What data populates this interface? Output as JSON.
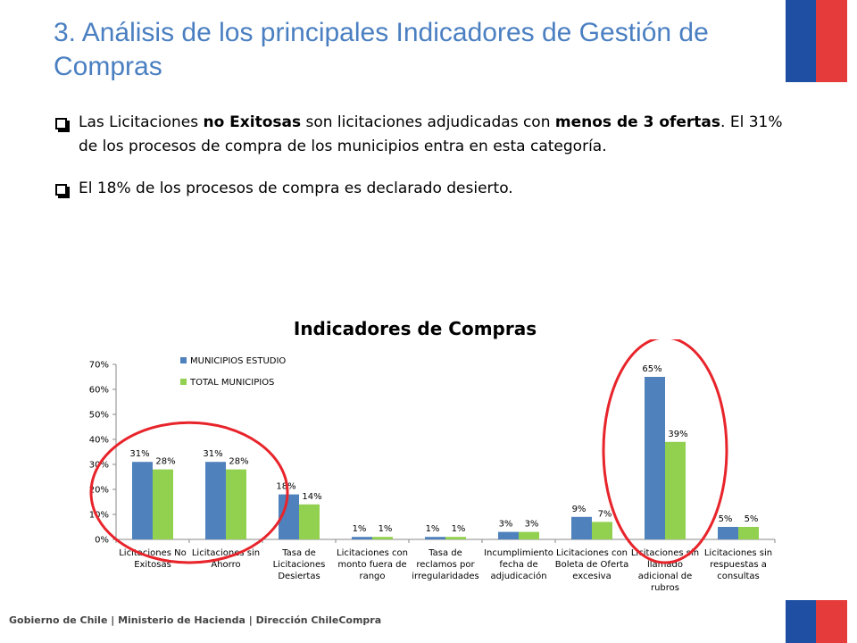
{
  "header": {
    "title": "3. Análisis de los principales Indicadores de Gestión de Compras"
  },
  "bullets": [
    {
      "parts": [
        {
          "text": "Las Licitaciones ",
          "bold": false
        },
        {
          "text": "no Exitosas",
          "bold": true
        },
        {
          "text": " son licitaciones adjudicadas con ",
          "bold": false
        },
        {
          "text": "menos de 3 ofertas",
          "bold": true
        },
        {
          "text": ". El 31% de los procesos de compra de los municipios entra en esta categoría.",
          "bold": false
        }
      ]
    },
    {
      "parts": [
        {
          "text": "El 18% de los procesos de compra es declarado desierto.",
          "bold": false
        }
      ]
    }
  ],
  "footer": {
    "text": "Gobierno de Chile | Ministerio de Hacienda | Dirección ChileCompra"
  },
  "colors": {
    "title": "#4a7fc1",
    "series1": "#4f81bd",
    "series2": "#92d050",
    "highlight": "#e8242b",
    "flag_blue": "#1e4fa3",
    "flag_red": "#e63b3b"
  },
  "chart_data": {
    "type": "bar",
    "title": "Indicadores de Compras",
    "categories": [
      [
        "Licitaciones No",
        "Exitosas"
      ],
      [
        "Licitaciones sin",
        "Ahorro"
      ],
      [
        "Tasa de",
        "Licitaciones",
        "Desiertas"
      ],
      [
        "Licitaciones con",
        "monto fuera de",
        "rango"
      ],
      [
        "Tasa de",
        "reclamos por",
        "irregularidades"
      ],
      [
        "Incumplimiento",
        "fecha de",
        "adjudicación"
      ],
      [
        "Licitaciones con",
        "Boleta de Oferta",
        "excesiva"
      ],
      [
        "Licitaciones sin",
        "llamado",
        "adicional de",
        "rubros"
      ],
      [
        "Licitaciones sin",
        "respuestas a",
        "consultas"
      ]
    ],
    "series": [
      {
        "name": "MUNICIPIOS ESTUDIO",
        "values": [
          31,
          31,
          18,
          1,
          1,
          3,
          9,
          65,
          5
        ],
        "labels": [
          "31%",
          "31%",
          "18%",
          "1%",
          "1%",
          "3%",
          "9%",
          "65%",
          "5%"
        ]
      },
      {
        "name": "TOTAL MUNICIPIOS",
        "values": [
          28,
          28,
          14,
          1,
          1,
          3,
          7,
          39,
          5
        ],
        "labels": [
          "28%",
          "28%",
          "14%",
          "1%",
          "1%",
          "3%",
          "7%",
          "39%",
          "5%"
        ]
      }
    ],
    "yticks": [
      "0%",
      "10%",
      "20%",
      "30%",
      "40%",
      "50%",
      "60%",
      "70%"
    ],
    "ylim": [
      0,
      70
    ],
    "legend_position": "top-left",
    "grid": false,
    "highlighted_categories": [
      [
        0,
        1
      ],
      [
        7
      ]
    ]
  }
}
